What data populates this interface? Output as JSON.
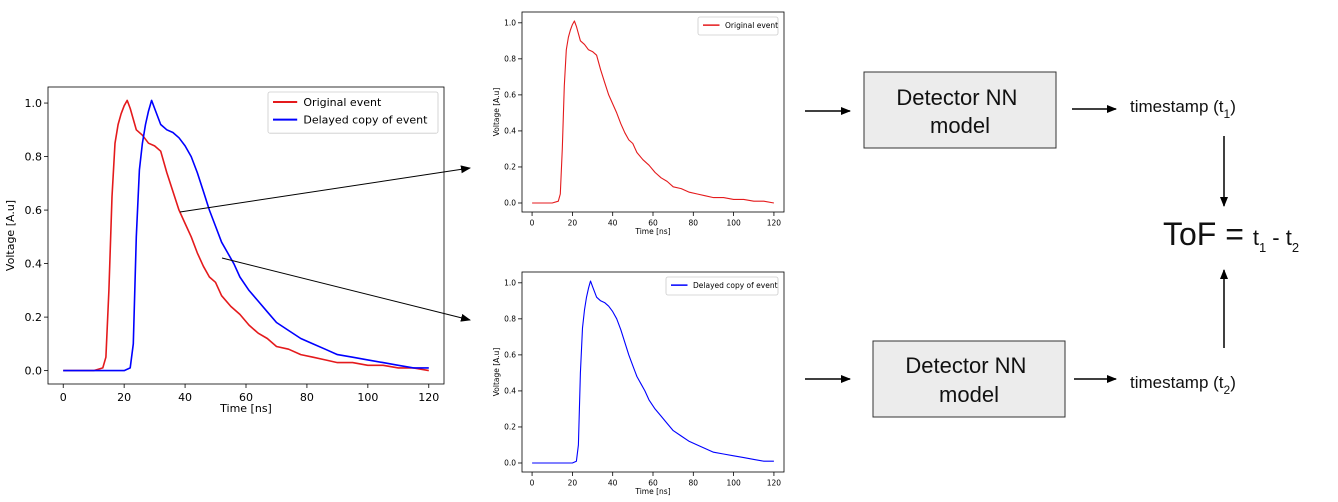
{
  "chart_data": [
    {
      "type": "line",
      "title": "",
      "xlabel": "Time [ns]",
      "ylabel": "Voltage [A.u]",
      "xlim": [
        -5,
        125
      ],
      "ylim": [
        -0.05,
        1.06
      ],
      "xticks": [
        0,
        20,
        40,
        60,
        80,
        100,
        120
      ],
      "yticks": [
        0.0,
        0.2,
        0.4,
        0.6,
        0.8,
        1.0
      ],
      "xtick_labels": [
        "0",
        "20",
        "40",
        "60",
        "80",
        "100",
        "120"
      ],
      "ytick_labels": [
        "0.0",
        "0.2",
        "0.4",
        "0.6",
        "0.8",
        "1.0"
      ],
      "legend": "top-right",
      "grid": false,
      "series": [
        {
          "name": "Original event",
          "color": "#e41a1c",
          "x": [
            0,
            10,
            13,
            14,
            15,
            16,
            17,
            18,
            19,
            20,
            21,
            22,
            24,
            26,
            28,
            30,
            32,
            34,
            36,
            38,
            40,
            42,
            44,
            46,
            48,
            50,
            52,
            55,
            58,
            61,
            64,
            67,
            70,
            74,
            78,
            82,
            86,
            90,
            95,
            100,
            105,
            110,
            115,
            120
          ],
          "y": [
            0.0,
            0.0,
            0.01,
            0.05,
            0.3,
            0.65,
            0.85,
            0.92,
            0.96,
            0.99,
            1.01,
            0.98,
            0.9,
            0.88,
            0.85,
            0.84,
            0.82,
            0.74,
            0.67,
            0.6,
            0.55,
            0.5,
            0.44,
            0.39,
            0.35,
            0.33,
            0.28,
            0.24,
            0.21,
            0.17,
            0.14,
            0.12,
            0.09,
            0.08,
            0.06,
            0.05,
            0.04,
            0.03,
            0.03,
            0.02,
            0.02,
            0.01,
            0.01,
            0.0
          ]
        },
        {
          "name": "Delayed copy of event",
          "color": "#0000ff",
          "x": [
            0,
            10,
            20,
            22,
            23,
            24,
            25,
            26,
            27,
            28,
            29,
            30,
            32,
            34,
            36,
            38,
            40,
            42,
            44,
            46,
            48,
            50,
            52,
            54,
            56,
            58,
            61,
            64,
            67,
            70,
            74,
            78,
            82,
            86,
            90,
            95,
            100,
            105,
            110,
            115,
            120
          ],
          "y": [
            0.0,
            0.0,
            0.0,
            0.01,
            0.1,
            0.5,
            0.75,
            0.85,
            0.92,
            0.97,
            1.01,
            0.98,
            0.92,
            0.9,
            0.89,
            0.87,
            0.84,
            0.8,
            0.74,
            0.67,
            0.6,
            0.54,
            0.48,
            0.44,
            0.4,
            0.35,
            0.3,
            0.26,
            0.22,
            0.18,
            0.15,
            0.12,
            0.1,
            0.08,
            0.06,
            0.05,
            0.04,
            0.03,
            0.02,
            0.01,
            0.01
          ]
        }
      ]
    },
    {
      "type": "line",
      "title": "",
      "xlabel": "Time [ns]",
      "ylabel": "Voltage [A.u]",
      "xlim": [
        -5,
        125
      ],
      "ylim": [
        -0.05,
        1.06
      ],
      "xticks": [
        0,
        20,
        40,
        60,
        80,
        100,
        120
      ],
      "yticks": [
        0.0,
        0.2,
        0.4,
        0.6,
        0.8,
        1.0
      ],
      "xtick_labels": [
        "0",
        "20",
        "40",
        "60",
        "80",
        "100",
        "120"
      ],
      "ytick_labels": [
        "0.0",
        "0.2",
        "0.4",
        "0.6",
        "0.8",
        "1.0"
      ],
      "legend": "top-right",
      "grid": false,
      "series": [
        {
          "name": "Original event",
          "color": "#e41a1c",
          "x": [
            0,
            10,
            13,
            14,
            15,
            16,
            17,
            18,
            19,
            20,
            21,
            22,
            24,
            26,
            28,
            30,
            32,
            34,
            36,
            38,
            40,
            42,
            44,
            46,
            48,
            50,
            52,
            55,
            58,
            61,
            64,
            67,
            70,
            74,
            78,
            82,
            86,
            90,
            95,
            100,
            105,
            110,
            115,
            120
          ],
          "y": [
            0.0,
            0.0,
            0.01,
            0.05,
            0.3,
            0.65,
            0.85,
            0.92,
            0.96,
            0.99,
            1.01,
            0.98,
            0.9,
            0.88,
            0.85,
            0.84,
            0.82,
            0.74,
            0.67,
            0.6,
            0.55,
            0.5,
            0.44,
            0.39,
            0.35,
            0.33,
            0.28,
            0.24,
            0.21,
            0.17,
            0.14,
            0.12,
            0.09,
            0.08,
            0.06,
            0.05,
            0.04,
            0.03,
            0.03,
            0.02,
            0.02,
            0.01,
            0.01,
            0.0
          ]
        }
      ]
    },
    {
      "type": "line",
      "title": "",
      "xlabel": "Time [ns]",
      "ylabel": "Voltage [A.u]",
      "xlim": [
        -5,
        125
      ],
      "ylim": [
        -0.05,
        1.06
      ],
      "xticks": [
        0,
        20,
        40,
        60,
        80,
        100,
        120
      ],
      "yticks": [
        0.0,
        0.2,
        0.4,
        0.6,
        0.8,
        1.0
      ],
      "xtick_labels": [
        "0",
        "20",
        "40",
        "60",
        "80",
        "100",
        "120"
      ],
      "ytick_labels": [
        "0.0",
        "0.2",
        "0.4",
        "0.6",
        "0.8",
        "1.0"
      ],
      "legend": "top-right",
      "grid": false,
      "series": [
        {
          "name": "Delayed copy of event",
          "color": "#0000ff",
          "x": [
            0,
            10,
            20,
            22,
            23,
            24,
            25,
            26,
            27,
            28,
            29,
            30,
            32,
            34,
            36,
            38,
            40,
            42,
            44,
            46,
            48,
            50,
            52,
            54,
            56,
            58,
            61,
            64,
            67,
            70,
            74,
            78,
            82,
            86,
            90,
            95,
            100,
            105,
            110,
            115,
            120
          ],
          "y": [
            0.0,
            0.0,
            0.0,
            0.01,
            0.1,
            0.5,
            0.75,
            0.85,
            0.92,
            0.97,
            1.01,
            0.98,
            0.92,
            0.9,
            0.89,
            0.87,
            0.84,
            0.8,
            0.74,
            0.67,
            0.6,
            0.54,
            0.48,
            0.44,
            0.4,
            0.35,
            0.3,
            0.26,
            0.22,
            0.18,
            0.15,
            0.12,
            0.1,
            0.08,
            0.06,
            0.05,
            0.04,
            0.03,
            0.02,
            0.01,
            0.01
          ]
        }
      ]
    }
  ],
  "diagram": {
    "model_box_top": "Detector NN\nmodel",
    "model_box_bottom": "Detector NN\nmodel",
    "timestamp_top": {
      "prefix": "timestamp (t",
      "sub": "1",
      "suffix": ")"
    },
    "timestamp_bottom": {
      "prefix": "timestamp (t",
      "sub": "2",
      "suffix": ")"
    },
    "tof": {
      "label": "ToF = ",
      "t1": "t",
      "t1_sub": "1",
      "minus": " - ",
      "t2": "t",
      "t2_sub": "2"
    },
    "colors": {
      "box_fill": "#ececec",
      "box_stroke": "#333333",
      "arrow": "#000000"
    }
  }
}
